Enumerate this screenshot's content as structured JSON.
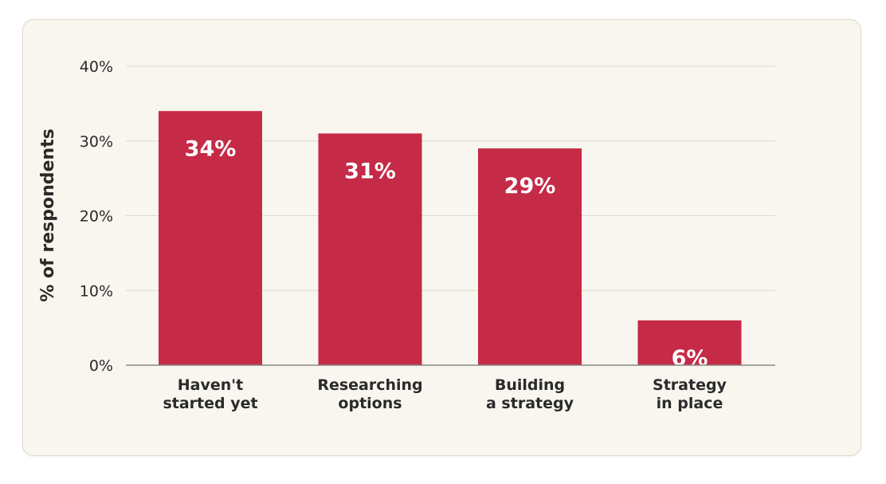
{
  "colors": {
    "bar": "#c52a47",
    "card_background": "#f9f6ef"
  },
  "chart_data": {
    "type": "bar",
    "title": "",
    "xlabel": "",
    "ylabel": "% of respondents",
    "ylim": [
      0,
      40
    ],
    "yticks": [
      0,
      10,
      20,
      30,
      40
    ],
    "ytick_labels": [
      "0%",
      "10%",
      "20%",
      "30%",
      "40%"
    ],
    "grid": true,
    "categories": [
      [
        "Haven't",
        "started yet"
      ],
      [
        "Researching",
        "options"
      ],
      [
        "Building",
        "a strategy"
      ],
      [
        "Strategy",
        "in place"
      ]
    ],
    "values": [
      34,
      31,
      29,
      6
    ],
    "data_labels": [
      "34%",
      "31%",
      "29%",
      "6%"
    ]
  }
}
